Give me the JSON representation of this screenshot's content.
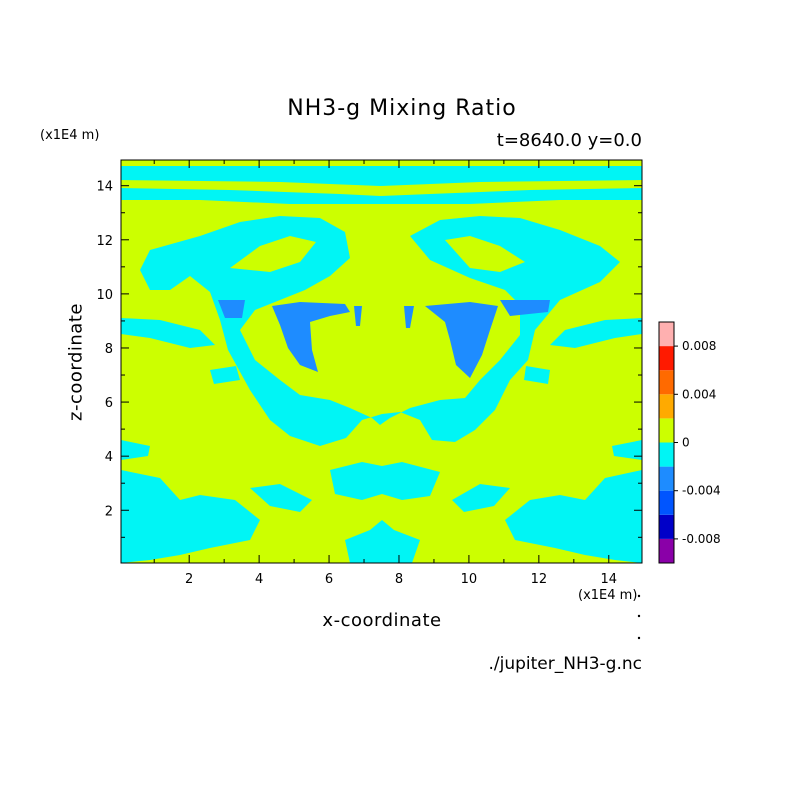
{
  "chart_data": {
    "type": "heatmap",
    "title": "NH3-g Mixing Ratio",
    "subtitle": "t=8640.0 y=0.0",
    "xlabel": "x-coordinate",
    "ylabel": "z-coordinate",
    "x_unit": "(x1E4 m)",
    "y_unit": "(x1E4 m)",
    "xlim": [
      0.05,
      14.95
    ],
    "ylim": [
      0.05,
      14.95
    ],
    "x_ticks": [
      2,
      4,
      6,
      8,
      10,
      12,
      14
    ],
    "y_ticks": [
      2,
      4,
      6,
      8,
      10,
      12,
      14
    ],
    "source": "./jupiter_NH3-g.nc",
    "colorbar": {
      "levels": [
        -0.01,
        -0.008,
        -0.006,
        -0.004,
        -0.002,
        0,
        0.002,
        0.004,
        0.006,
        0.008,
        0.01
      ],
      "colors": [
        "#8a00a8",
        "#0000c8",
        "#0055ff",
        "#1e8cff",
        "#00f5f5",
        "#ccff00",
        "#ffaa00",
        "#ff6a00",
        "#ff1a00",
        "#ffb0b0"
      ],
      "tick_labels": [
        "-0.008",
        "-0.004",
        "0",
        "0.004",
        "0.008"
      ],
      "tick_values": [
        -0.008,
        -0.004,
        0,
        0.004,
        0.008
      ]
    }
  }
}
